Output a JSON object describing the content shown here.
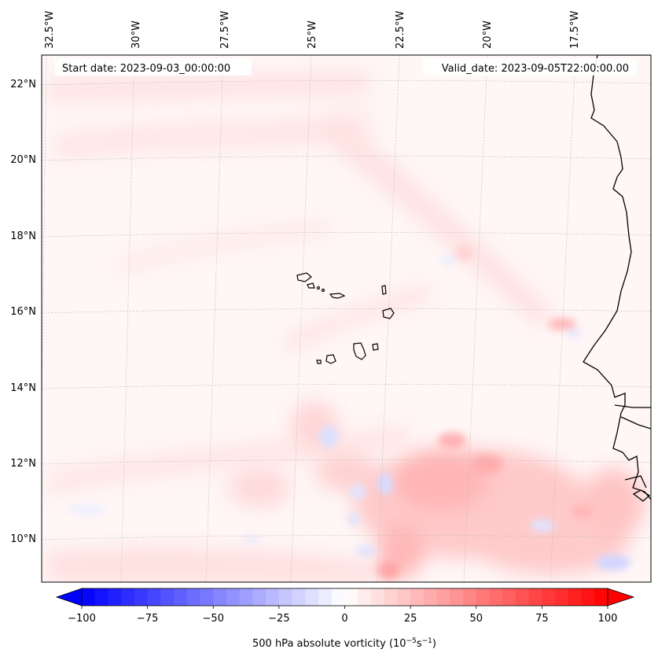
{
  "header": {
    "start_date": "Start date: 2023-09-03_00:00:00",
    "valid_date": "Valid_date: 2023-09-05T22:00:00.00"
  },
  "map": {
    "lon_labels": [
      "32.5°W",
      "30°W",
      "27.5°W",
      "25°W",
      "22.5°W",
      "20°W",
      "17.5°W"
    ],
    "lat_labels": [
      "22°N",
      "20°N",
      "18°N",
      "16°N",
      "14°N",
      "12°N",
      "10°N"
    ],
    "features": [
      "cape-verde-islands",
      "west-africa-coastline",
      "vorticity-field"
    ]
  },
  "colorbar": {
    "ticks": [
      "−100",
      "−75",
      "−50",
      "−25",
      "0",
      "25",
      "50",
      "75",
      "100"
    ],
    "label": "500 hPa absolute vorticity (10",
    "label_exp1": "−5",
    "label_mid": "s",
    "label_exp2": "−1",
    "label_end": ")",
    "range": [
      -100,
      100
    ],
    "levels": 40,
    "colors": {
      "neg": "#0000ff",
      "zero": "#ffffff",
      "pos": "#ff0000"
    }
  },
  "chart_data": {
    "type": "heatmap",
    "title": "",
    "variable": "500 hPa absolute vorticity",
    "units": "10^-5 s^-1",
    "lon_range": [
      -33,
      -15
    ],
    "lat_range": [
      9,
      23
    ],
    "clim": [
      -100,
      100
    ]
  }
}
